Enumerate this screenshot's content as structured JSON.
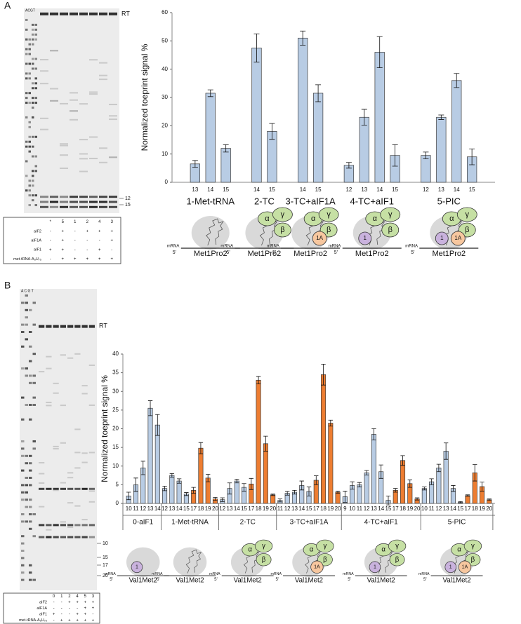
{
  "panels": [
    "A",
    "B"
  ],
  "gels": [
    {
      "header": "ACGT",
      "markers": [
        "RT",
        "12",
        "15"
      ],
      "lanes": [
        "*",
        "5",
        "1",
        "2",
        "4",
        "3"
      ],
      "rows": [
        {
          "name": "aIF2",
          "marks": [
            "-",
            "+",
            "-",
            "+",
            "+",
            "+"
          ]
        },
        {
          "name": "aIF1A",
          "marks": [
            "-",
            "+",
            "-",
            "-",
            "-",
            "+"
          ]
        },
        {
          "name": "aIF1",
          "marks": [
            "+",
            "+",
            "-",
            "-",
            "+",
            "-"
          ]
        },
        {
          "name": "met-tRNA-A₅U₇₅",
          "marks": [
            "-",
            "+",
            "+",
            "+",
            "+",
            "+"
          ]
        }
      ]
    },
    {
      "header": "A C G T",
      "markers": [
        "RT",
        "10",
        "15",
        "17",
        "20"
      ],
      "lanes": [
        "0",
        "1",
        "2",
        "4",
        "5",
        "3"
      ],
      "rows": [
        {
          "name": "aIF2",
          "marks": [
            "-",
            "-",
            "+",
            "+",
            "+",
            "+"
          ]
        },
        {
          "name": "aIF1A",
          "marks": [
            "-",
            "-",
            "-",
            "-",
            "+",
            "+"
          ]
        },
        {
          "name": "aIF1",
          "marks": [
            "+",
            "-",
            "-",
            "+",
            "+",
            "-"
          ]
        },
        {
          "name": "met-tRNA-A₅U₇₅",
          "marks": [
            "-",
            "+",
            "+",
            "+",
            "+",
            "+"
          ]
        }
      ]
    }
  ],
  "chart_data": [
    {
      "type": "bar",
      "ylabel": "Normalized toeprint signal %",
      "ylim": [
        0,
        60
      ],
      "yticks": [
        0,
        10,
        20,
        30,
        40,
        50,
        60
      ],
      "groups": [
        {
          "name": "1-Met-tRNA",
          "series": [
            {
              "color": "#b8cce4",
              "categories": [
                "13",
                "14",
                "15"
              ],
              "values": [
                6.5,
                31.5,
                12
              ],
              "errors": [
                1.2,
                1.2,
                1.3
              ]
            }
          ],
          "diagram": {
            "mrna": "mRNA",
            "end": "5'",
            "name": "Met1Pro2",
            "trna": true
          }
        },
        {
          "name": "2-TC",
          "series": [
            {
              "color": "#b8cce4",
              "categories": [
                "14",
                "15"
              ],
              "values": [
                47.5,
                18
              ],
              "errors": [
                5,
                2.8
              ]
            }
          ],
          "diagram": {
            "mrna": "mRNA",
            "end": "5'",
            "name": "Met1Pro2",
            "trna": true,
            "tc": [
              "α",
              "γ",
              "β"
            ]
          }
        },
        {
          "name": "3-TC+aIF1A",
          "series": [
            {
              "color": "#b8cce4",
              "categories": [
                "14",
                "15"
              ],
              "values": [
                51,
                31.5
              ],
              "errors": [
                2.5,
                3
              ]
            }
          ],
          "diagram": {
            "mrna": "mRNA",
            "end": "5'",
            "name": "Met1Pro2",
            "trna": true,
            "tc": [
              "α",
              "γ",
              "β"
            ],
            "aif1a": "1A"
          }
        },
        {
          "name": "4-TC+aIF1",
          "series": [
            {
              "color": "#b8cce4",
              "categories": [
                "12",
                "13",
                "14",
                "15"
              ],
              "values": [
                6,
                23,
                46,
                9.5
              ],
              "errors": [
                1,
                2.8,
                5.5,
                3.8
              ]
            }
          ],
          "diagram": {
            "mrna": "mRNA",
            "end": "5'",
            "name": "Met1Pro2",
            "trna": true,
            "tc": [
              "α",
              "γ",
              "β"
            ],
            "aif1": "1"
          }
        },
        {
          "name": "5-PIC",
          "series": [
            {
              "color": "#b8cce4",
              "categories": [
                "12",
                "13",
                "14",
                "15"
              ],
              "values": [
                9.5,
                23,
                36,
                9
              ],
              "errors": [
                1.2,
                0.8,
                2.5,
                2.8
              ]
            }
          ],
          "diagram": {
            "mrna": "mRNA",
            "end": "5'",
            "name": "Met1Pro2",
            "trna": true,
            "tc": [
              "α",
              "γ",
              "β"
            ],
            "aif1": "1",
            "aif1a": "1A"
          }
        }
      ]
    },
    {
      "type": "bar",
      "ylabel": "Normalized toeprint signal %",
      "ylim": [
        0,
        40
      ],
      "yticks": [
        0,
        5,
        10,
        15,
        20,
        25,
        30,
        35,
        40
      ],
      "groups": [
        {
          "name": "0-aIF1",
          "series": [
            {
              "color": "#b8cce4",
              "categories": [
                "10",
                "11",
                "12",
                "13",
                "14"
              ],
              "values": [
                2,
                5,
                9.5,
                25.5,
                21
              ],
              "errors": [
                1,
                1.8,
                1.8,
                2,
                2.8
              ]
            }
          ],
          "diagram": {
            "mrna": "mRNA",
            "end": "5'",
            "name": "Val1Met2",
            "aif1": "1"
          }
        },
        {
          "name": "1-Met-tRNA",
          "series": [
            {
              "color": "#b8cce4",
              "categories": [
                "12",
                "13",
                "14",
                "15"
              ],
              "values": [
                4,
                7.5,
                6,
                2.5
              ],
              "errors": [
                0.6,
                0.5,
                0.6,
                0.4
              ]
            },
            {
              "color": "#ed7d31",
              "categories": [
                "17",
                "18",
                "19",
                "20"
              ],
              "values": [
                3.5,
                14.8,
                6.8,
                1.2
              ],
              "errors": [
                0.8,
                1.5,
                1,
                0.4
              ]
            }
          ],
          "diagram": {
            "mrna": "mRNA",
            "end": "5'",
            "name": "Val1Met2",
            "trna": true
          }
        },
        {
          "name": "2-TC",
          "series": [
            {
              "color": "#b8cce4",
              "categories": [
                "12",
                "13",
                "14",
                "15"
              ],
              "values": [
                1,
                4,
                6,
                4.3
              ],
              "errors": [
                0.5,
                1.5,
                0.5,
                1
              ]
            },
            {
              "color": "#ed7d31",
              "categories": [
                "17",
                "18",
                "19",
                "20"
              ],
              "values": [
                5.2,
                33,
                16,
                2.3
              ],
              "errors": [
                1.5,
                1,
                2,
                0.2
              ]
            }
          ],
          "diagram": {
            "mrna": "mRNA",
            "end": "5'",
            "name": "Val1Met2",
            "trna": true,
            "tc": [
              "α",
              "γ",
              "β"
            ]
          }
        },
        {
          "name": "3-TC+aIF1A",
          "series": [
            {
              "color": "#b8cce4",
              "categories": [
                "11",
                "12",
                "13",
                "14",
                "15"
              ],
              "values": [
                0.8,
                2.7,
                3,
                4.8,
                3.2
              ],
              "errors": [
                0.4,
                0.5,
                0.5,
                1.2,
                1.2
              ]
            },
            {
              "color": "#ed7d31",
              "categories": [
                "17",
                "18",
                "19",
                "20"
              ],
              "values": [
                6.2,
                34.5,
                21.5,
                3
              ],
              "errors": [
                1.2,
                2.8,
                0.8,
                0.3
              ]
            }
          ],
          "diagram": {
            "mrna": "mRNA",
            "end": "5'",
            "name": "Val1Met2",
            "trna": true,
            "tc": [
              "α",
              "γ",
              "β"
            ],
            "aif1a": "1A"
          }
        },
        {
          "name": "4-TC+aIF1",
          "series": [
            {
              "color": "#b8cce4",
              "categories": [
                "9",
                "10",
                "11",
                "12",
                "13",
                "14",
                "15"
              ],
              "values": [
                1.8,
                4.8,
                5,
                8.2,
                18.5,
                8.5,
                0.8
              ],
              "errors": [
                1.5,
                1,
                0.6,
                0.6,
                1.5,
                1.8,
                1.2
              ]
            },
            {
              "color": "#ed7d31",
              "categories": [
                "17",
                "18",
                "19",
                "20"
              ],
              "values": [
                3.5,
                11.5,
                5.3,
                1.2
              ],
              "errors": [
                0.5,
                1.3,
                1,
                0.3
              ]
            }
          ],
          "diagram": {
            "mrna": "mRNA",
            "end": "5'",
            "name": "Val1Met2",
            "trna": true,
            "tc": [
              "α",
              "γ",
              "β"
            ],
            "aif1": "1"
          }
        },
        {
          "name": "5-PIC",
          "series": [
            {
              "color": "#b8cce4",
              "categories": [
                "10",
                "11",
                "12",
                "13",
                "14",
                "15"
              ],
              "values": [
                4,
                5.8,
                9.5,
                14,
                4,
                0.3
              ],
              "errors": [
                0.4,
                0.8,
                1,
                2.2,
                0.8,
                0.2
              ]
            },
            {
              "color": "#ed7d31",
              "categories": [
                "17",
                "18",
                "19",
                "20"
              ],
              "values": [
                2.1,
                8.2,
                4.5,
                1
              ],
              "errors": [
                0.2,
                2.2,
                1.2,
                0.2
              ]
            }
          ],
          "diagram": {
            "mrna": "mRNA",
            "end": "5'",
            "name": "Val1Met2",
            "trna": true,
            "tc": [
              "α",
              "γ",
              "β"
            ],
            "aif1": "1",
            "aif1a": "1A"
          }
        }
      ]
    }
  ]
}
